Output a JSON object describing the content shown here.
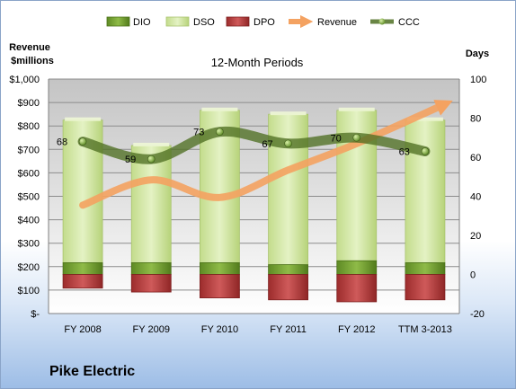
{
  "company": "Pike Electric",
  "chart_data": {
    "type": "bar",
    "title": "12-Month Periods",
    "left_axis_label_line1": "Revenue",
    "left_axis_label_line2": "$millions",
    "right_axis_label": "Days",
    "categories": [
      "FY 2008",
      "FY 2009",
      "FY 2010",
      "FY 2011",
      "FY 2012",
      "TTM 3-2013"
    ],
    "left_ticks": [
      "$-",
      "$100",
      "$200",
      "$300",
      "$400",
      "$500",
      "$600",
      "$700",
      "$800",
      "$900",
      "$1,000"
    ],
    "right_ticks": [
      "-20",
      "0",
      "20",
      "40",
      "60",
      "80",
      "100"
    ],
    "ylim_left": [
      0,
      1000
    ],
    "ylim_right": [
      -20,
      100
    ],
    "grid": true,
    "legend_position": "top",
    "series": [
      {
        "name": "DIO",
        "type": "stacked-bar",
        "axis": "right",
        "color": "#6f9a2e",
        "values": [
          6,
          6,
          6,
          5,
          7,
          6
        ]
      },
      {
        "name": "DSO",
        "type": "stacked-bar",
        "axis": "right",
        "color": "#d3e6a4",
        "values": [
          73,
          60,
          78,
          77,
          77,
          73
        ]
      },
      {
        "name": "DPO",
        "type": "stacked-bar-negative",
        "axis": "right",
        "color": "#b33a3a",
        "values": [
          -7,
          -9,
          -12,
          -13,
          -14,
          -13
        ]
      },
      {
        "name": "Revenue",
        "type": "line",
        "axis": "left",
        "color": "#f4a261",
        "values": [
          462,
          570,
          495,
          612,
          725,
          893
        ]
      },
      {
        "name": "CCC",
        "type": "line",
        "axis": "right",
        "color": "#4f7023",
        "values": [
          68,
          59,
          73,
          67,
          70,
          63
        ],
        "labels": [
          "68",
          "59",
          "73",
          "67",
          "70",
          "63"
        ]
      }
    ]
  }
}
